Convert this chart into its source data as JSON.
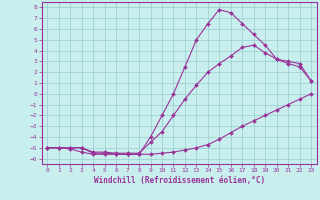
{
  "title": "",
  "xlabel": "Windchill (Refroidissement éolien,°C)",
  "ylabel": "",
  "xlim": [
    -0.5,
    23.5
  ],
  "ylim": [
    -6.5,
    8.5
  ],
  "xticks": [
    0,
    1,
    2,
    3,
    4,
    5,
    6,
    7,
    8,
    9,
    10,
    11,
    12,
    13,
    14,
    15,
    16,
    17,
    18,
    19,
    20,
    21,
    22,
    23
  ],
  "yticks": [
    -6,
    -5,
    -4,
    -3,
    -2,
    -1,
    0,
    1,
    2,
    3,
    4,
    5,
    6,
    7,
    8
  ],
  "background_color": "#c9eeee",
  "grid_color": "#99cccc",
  "line_color": "#993399",
  "line1_x": [
    0,
    1,
    2,
    3,
    4,
    5,
    6,
    7,
    8,
    9,
    10,
    11,
    12,
    13,
    14,
    15,
    16,
    17,
    18,
    19,
    20,
    21,
    22,
    23
  ],
  "line1_y": [
    -5.0,
    -5.0,
    -5.1,
    -5.4,
    -5.6,
    -5.6,
    -5.6,
    -5.6,
    -5.6,
    -5.6,
    -5.5,
    -5.4,
    -5.2,
    -5.0,
    -4.7,
    -4.2,
    -3.6,
    -3.0,
    -2.5,
    -2.0,
    -1.5,
    -1.0,
    -0.5,
    0.0
  ],
  "line2_x": [
    0,
    1,
    2,
    3,
    4,
    5,
    6,
    7,
    8,
    9,
    10,
    11,
    12,
    13,
    14,
    15,
    16,
    17,
    18,
    19,
    20,
    21,
    22,
    23
  ],
  "line2_y": [
    -5.0,
    -5.0,
    -5.0,
    -5.0,
    -5.4,
    -5.4,
    -5.5,
    -5.5,
    -5.5,
    -4.5,
    -3.5,
    -2.0,
    -0.5,
    0.8,
    2.0,
    2.8,
    3.5,
    4.3,
    4.5,
    3.8,
    3.2,
    2.8,
    2.5,
    1.2
  ],
  "line3_x": [
    0,
    1,
    2,
    3,
    4,
    5,
    6,
    7,
    8,
    9,
    10,
    11,
    12,
    13,
    14,
    15,
    16,
    17,
    18,
    19,
    20,
    21,
    22,
    23
  ],
  "line3_y": [
    -5.0,
    -5.0,
    -5.0,
    -5.0,
    -5.5,
    -5.5,
    -5.6,
    -5.6,
    -5.6,
    -4.0,
    -2.0,
    0.0,
    2.5,
    5.0,
    6.5,
    7.8,
    7.5,
    6.5,
    5.5,
    4.5,
    3.2,
    3.0,
    2.8,
    1.2
  ],
  "marker": "D",
  "markersize": 2.0,
  "linewidth": 0.8,
  "tick_fontsize": 4.5,
  "xlabel_fontsize": 5.5
}
